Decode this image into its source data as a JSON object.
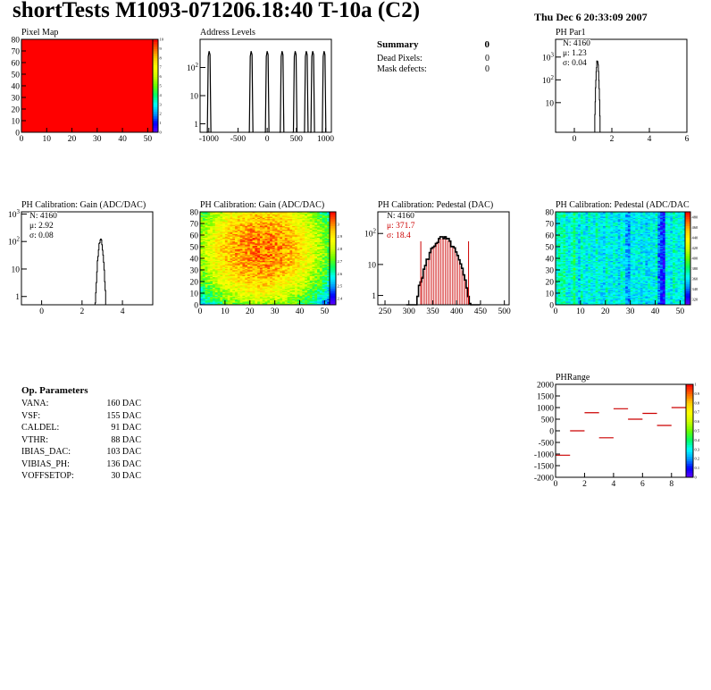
{
  "header": {
    "title": "shortTests M1093-071206.18:40 T-10a (C2)",
    "date": "Thu Dec  6 20:33:09 2007"
  },
  "summary": {
    "title": "Summary",
    "count": "0",
    "rows": [
      {
        "label": "Dead Pixels:",
        "value": "0"
      },
      {
        "label": "Mask defects:",
        "value": "0"
      }
    ]
  },
  "op_params": {
    "title": "Op. Parameters",
    "rows": [
      {
        "name": "VANA:",
        "value": "160 DAC"
      },
      {
        "name": "VSF:",
        "value": "155 DAC"
      },
      {
        "name": "CALDEL:",
        "value": "91 DAC"
      },
      {
        "name": "VTHR:",
        "value": "88 DAC"
      },
      {
        "name": "IBIAS_DAC:",
        "value": "103 DAC"
      },
      {
        "name": "VIBIAS_PH:",
        "value": "136 DAC"
      },
      {
        "name": "VOFFSETOP:",
        "value": "30 DAC"
      }
    ]
  },
  "stats": {
    "phpar1": [
      "N: 4160",
      "μ: 1.23",
      "σ: 0.04"
    ],
    "gain1d": [
      "N: 4160",
      "μ: 2.92",
      "σ: 0.08"
    ],
    "ped1d": [
      "N: 4160",
      "μ: 371.7",
      "σ: 18.4"
    ]
  },
  "colors": {
    "red": "#ff0000",
    "palette": [
      "#6600ff",
      "#0000ff",
      "#0099ff",
      "#00ffff",
      "#00ff66",
      "#66ff00",
      "#ccff00",
      "#ffff00",
      "#ffcc00",
      "#ff6600",
      "#ff0000"
    ],
    "stat_red": "#cc0000"
  },
  "chart_data": [
    {
      "id": "pixel-map",
      "type": "heatmap",
      "title": "Pixel Map",
      "x_ticks": [
        "0",
        "10",
        "20",
        "30",
        "40",
        "50"
      ],
      "y_ticks": [
        "0",
        "10",
        "20",
        "30",
        "40",
        "50",
        "60",
        "70",
        "80"
      ],
      "xlim": [
        0,
        52
      ],
      "ylim": [
        0,
        80
      ],
      "z_ticks": [
        "0",
        "1",
        "2",
        "3",
        "4",
        "5",
        "6",
        "7",
        "8",
        "9",
        "10"
      ],
      "zlim": [
        0,
        10
      ],
      "fill_value": 10
    },
    {
      "id": "address-levels",
      "type": "bar",
      "title": "Address Levels",
      "x_ticks": [
        "-1000",
        "-500",
        "0",
        "500",
        "1000"
      ],
      "xlim": [
        -1150,
        1100
      ],
      "y_ticks": [
        "1",
        "10",
        "10^2"
      ],
      "ylim": [
        0.5,
        1000
      ],
      "log_y": true,
      "peaks": [
        {
          "x": -995,
          "value": 380
        },
        {
          "x": -275,
          "value": 380
        },
        {
          "x": 0,
          "value": 380
        },
        {
          "x": 255,
          "value": 380
        },
        {
          "x": 480,
          "value": 380
        },
        {
          "x": 670,
          "value": 380
        },
        {
          "x": 780,
          "value": 380
        },
        {
          "x": 975,
          "value": 380
        }
      ]
    },
    {
      "id": "ph-par1",
      "type": "histogram",
      "title": "PH Par1",
      "x_ticks": [
        "0",
        "2",
        "4",
        "6"
      ],
      "xlim": [
        -1,
        6
      ],
      "y_ticks": [
        "10",
        "10^2",
        "10^3"
      ],
      "ylim": [
        0.5,
        6000
      ],
      "log_y": true,
      "mean": 1.23,
      "sigma": 0.04,
      "peak": 700
    },
    {
      "id": "gain-1d",
      "type": "histogram",
      "title": "PH Calibration: Gain (ADC/DAC)",
      "x_ticks": [
        "0",
        "2",
        "4"
      ],
      "xlim": [
        -1,
        5.5
      ],
      "y_ticks": [
        "1",
        "10",
        "10^2",
        "10^3"
      ],
      "ylim": [
        0.5,
        1200
      ],
      "log_y": true,
      "mean": 2.92,
      "sigma": 0.08,
      "peak": 110
    },
    {
      "id": "gain-2d",
      "type": "heatmap",
      "title": "PH Calibration: Gain (ADC/DAC)",
      "x_ticks": [
        "0",
        "10",
        "20",
        "30",
        "40",
        "50"
      ],
      "y_ticks": [
        "0",
        "10",
        "20",
        "30",
        "40",
        "50",
        "60",
        "70",
        "80"
      ],
      "xlim": [
        0,
        52
      ],
      "ylim": [
        0,
        80
      ],
      "z_ticks": [
        "2.4",
        "2.5",
        "2.6",
        "2.7",
        "2.8",
        "2.9",
        "3"
      ],
      "zlim": [
        2.35,
        3.1
      ]
    },
    {
      "id": "ped-1d",
      "type": "histogram",
      "title": "PH Calibration: Pedestal (DAC)",
      "x_ticks": [
        "250",
        "300",
        "350",
        "400",
        "450",
        "500"
      ],
      "xlim": [
        235,
        510
      ],
      "y_ticks": [
        "1",
        "10",
        "10^2"
      ],
      "ylim": [
        0.5,
        500
      ],
      "log_y": true,
      "mean": 371.7,
      "sigma": 18.4,
      "peak": 70,
      "cut_low": 325,
      "cut_high": 425
    },
    {
      "id": "ped-2d",
      "type": "heatmap",
      "title": "PH Calibration: Pedestal (ADC/DAC",
      "x_ticks": [
        "0",
        "10",
        "20",
        "30",
        "40",
        "50"
      ],
      "y_ticks": [
        "0",
        "10",
        "20",
        "30",
        "40",
        "50",
        "60",
        "70",
        "80"
      ],
      "xlim": [
        0,
        52
      ],
      "ylim": [
        0,
        80
      ],
      "z_ticks": [
        "320",
        "340",
        "360",
        "380",
        "400",
        "420",
        "440",
        "460",
        "480"
      ],
      "zlim": [
        310,
        490
      ]
    },
    {
      "id": "ph-range",
      "type": "scatter",
      "title": "PHRange",
      "x_ticks": [
        "0",
        "2",
        "4",
        "6",
        "8"
      ],
      "xlim": [
        0,
        9
      ],
      "y_ticks": [
        "-2000",
        "-1500",
        "-1000",
        "-500",
        "0",
        "500",
        "1000",
        "1500",
        "2000"
      ],
      "ylim": [
        -2000,
        2000
      ],
      "z_ticks": [
        "0",
        "0.1",
        "0.2",
        "0.3",
        "0.4",
        "0.5",
        "0.6",
        "0.7",
        "0.8",
        "0.9",
        "1"
      ],
      "x": [
        0,
        1,
        2,
        3,
        4,
        5,
        6,
        7,
        8
      ],
      "y": [
        -1050,
        0,
        780,
        -300,
        950,
        500,
        750,
        230,
        1000
      ]
    }
  ]
}
